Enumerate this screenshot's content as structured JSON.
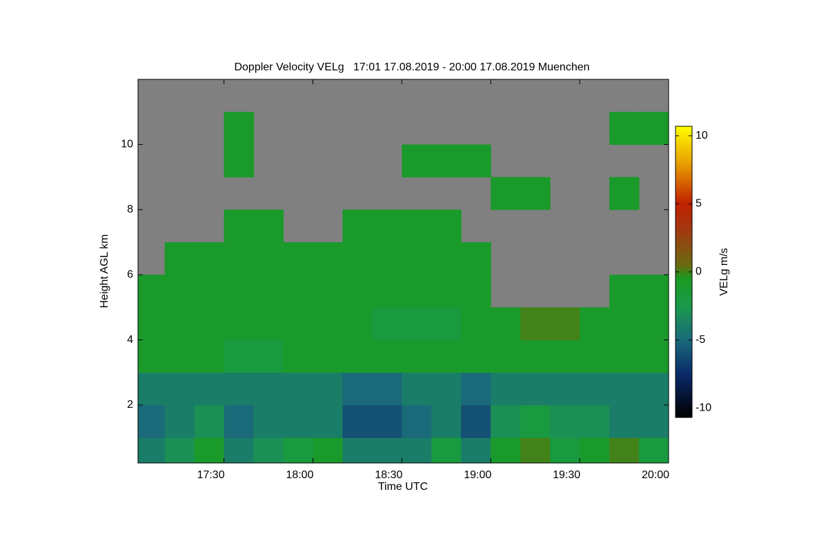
{
  "chart_data": {
    "type": "heatmap",
    "title": "Doppler Velocity VELg   17:01 17.08.2019 - 20:00 17.08.2019 Muenchen",
    "xlabel": "Time UTC",
    "ylabel": "Height AGL km",
    "xlim": [
      1021,
      1200
    ],
    "xticks": [
      {
        "value": 1050,
        "label": "17:30"
      },
      {
        "value": 1080,
        "label": "18:00"
      },
      {
        "value": 1110,
        "label": "18:30"
      },
      {
        "value": 1140,
        "label": "19:00"
      },
      {
        "value": 1170,
        "label": "19:30"
      },
      {
        "value": 1200,
        "label": "20:00"
      }
    ],
    "ylim": [
      0.22,
      12
    ],
    "yticks": [
      2,
      4,
      6,
      8,
      10
    ],
    "x_bins": [
      1021,
      1030,
      1040,
      1050,
      1060,
      1070,
      1080,
      1090,
      1100,
      1110,
      1120,
      1130,
      1140,
      1150,
      1160,
      1170,
      1180,
      1190,
      1200
    ],
    "y_bins": [
      0.22,
      1,
      2,
      3,
      4,
      5,
      6,
      7,
      8,
      9,
      10,
      11,
      12
    ],
    "z": [
      [
        -4,
        -3,
        -1,
        -4,
        -3,
        -2,
        -1,
        -4,
        -4,
        -4,
        -2,
        -4,
        -1,
        0,
        -2,
        -1,
        0,
        -2
      ],
      [
        -5,
        -4,
        -3,
        -5,
        -4,
        -4,
        -4,
        -6,
        -6,
        -5,
        -4,
        -6,
        -3,
        -2,
        -3,
        -3,
        -4,
        -4
      ],
      [
        -4,
        -4,
        -4,
        -4,
        -4,
        -4,
        -4,
        -5,
        -5,
        -4,
        -4,
        -5,
        -4,
        -4,
        -4,
        -4,
        -4,
        -4
      ],
      [
        -1,
        -1,
        -1,
        -2,
        -2,
        -1,
        -1,
        -1,
        -1,
        -1,
        -1,
        -1,
        -1,
        -1,
        -1,
        -1,
        -1,
        -1
      ],
      [
        -1,
        -1,
        -1,
        -1,
        -1,
        -1,
        -1,
        -1,
        -2,
        -2,
        -2,
        -1,
        -1,
        0,
        0,
        -1,
        -1,
        -1
      ],
      [
        -1,
        -1,
        -1,
        -1,
        -1,
        -1,
        -1,
        -1,
        -1,
        -1,
        -1,
        -1,
        null,
        null,
        null,
        null,
        -1,
        -1
      ],
      [
        null,
        -1,
        -1,
        -1,
        -1,
        -1,
        -1,
        -1,
        -1,
        -1,
        -1,
        -1,
        null,
        null,
        null,
        null,
        null,
        null
      ],
      [
        null,
        null,
        null,
        -1,
        -1,
        null,
        null,
        -1,
        -1,
        -1,
        -1,
        null,
        null,
        null,
        null,
        null,
        null,
        null
      ],
      [
        null,
        null,
        null,
        null,
        null,
        null,
        null,
        null,
        null,
        null,
        null,
        null,
        -1,
        -1,
        null,
        null,
        -1,
        null
      ],
      [
        null,
        null,
        null,
        -1,
        null,
        null,
        null,
        null,
        null,
        -1,
        -1,
        -1,
        null,
        null,
        null,
        null,
        null,
        null
      ],
      [
        null,
        null,
        null,
        -1,
        null,
        null,
        null,
        null,
        null,
        null,
        null,
        null,
        null,
        null,
        null,
        null,
        -1,
        -1
      ],
      [
        null,
        null,
        null,
        null,
        null,
        null,
        null,
        null,
        null,
        null,
        null,
        null,
        null,
        null,
        null,
        null,
        null,
        null
      ]
    ],
    "nodata_color": "#808080",
    "colorbar_label": "VELg m/s",
    "clim": [
      -10.7,
      10.7
    ],
    "cticks": [
      {
        "value": -10,
        "label": "-10"
      },
      {
        "value": -5,
        "label": "-5"
      },
      0,
      5,
      10
    ],
    "colorscale": [
      [
        -10.7,
        "#000000"
      ],
      [
        -7.5,
        "#0a2a6a"
      ],
      [
        -5,
        "#1a6a7a"
      ],
      [
        -2.5,
        "#1a9a4a"
      ],
      [
        -0.5,
        "#1a9a20"
      ],
      [
        0.5,
        "#6a6a10"
      ],
      [
        3,
        "#a03a10"
      ],
      [
        5,
        "#c02000"
      ],
      [
        8,
        "#e8a000"
      ],
      [
        10.7,
        "#ffff00"
      ]
    ]
  }
}
